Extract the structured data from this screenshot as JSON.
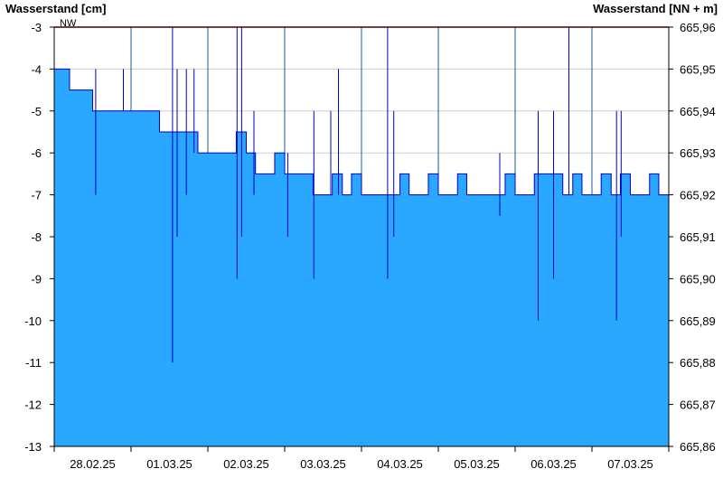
{
  "chart_data": {
    "type": "area",
    "ylabel_left": "Wasserstand [cm]",
    "ylabel_right": "Wasserstand [NN + m]",
    "ylim": [
      -13,
      -3
    ],
    "y_ticks": [
      -3,
      -4,
      -5,
      -6,
      -7,
      -8,
      -9,
      -10,
      -11,
      -12,
      -13
    ],
    "y2lim": [
      665.86,
      665.96
    ],
    "y2_ticks": [
      "665,96",
      "665,95",
      "665,94",
      "665,93",
      "665,92",
      "665,91",
      "665,90",
      "665,89",
      "665,88",
      "665,87",
      "665,86"
    ],
    "x_ticks": [
      "28.02.25",
      "01.03.25",
      "02.03.25",
      "03.03.25",
      "04.03.25",
      "05.03.25",
      "06.03.25",
      "07.03.25"
    ],
    "reference_line": {
      "label": "NW",
      "value": -3,
      "color": "#cc0000"
    },
    "fill_color": "#2aa7ff",
    "line_color": "#0000cc",
    "grid": true,
    "series": [
      {
        "x_days": [
          0,
          0.1,
          0.2,
          0.3,
          0.42,
          0.5,
          0.62,
          0.75,
          0.87,
          1.0,
          1.12,
          1.25,
          1.37,
          1.5,
          1.62,
          1.75,
          1.87,
          2.0,
          2.12,
          2.25,
          2.37,
          2.5,
          2.62,
          2.75,
          2.87,
          3.0,
          3.12,
          3.25,
          3.37,
          3.5,
          3.62,
          3.75,
          3.87,
          4.0,
          4.12,
          4.25,
          4.37,
          4.5,
          4.62,
          4.75,
          4.87,
          5.0,
          5.12,
          5.25,
          5.37,
          5.5,
          5.62,
          5.75,
          5.87,
          6.0,
          6.12,
          6.25,
          6.37,
          6.5,
          6.62,
          6.75,
          6.87,
          7.0,
          7.12,
          7.25,
          7.37,
          7.5,
          7.62,
          7.75,
          7.87,
          8.0
        ],
        "values": [
          -4,
          -4,
          -4.5,
          -4.5,
          -4.5,
          -5,
          -5,
          -5,
          -5,
          -5,
          -5,
          -5,
          -5.5,
          -5.5,
          -5.5,
          -5.5,
          -6,
          -6,
          -6,
          -6,
          -5.5,
          -6,
          -6.5,
          -6.5,
          -6,
          -6.5,
          -6.5,
          -6.5,
          -7,
          -7,
          -6.5,
          -7,
          -6.5,
          -7,
          -7,
          -7,
          -7,
          -6.5,
          -7,
          -7,
          -6.5,
          -7,
          -7,
          -6.5,
          -7,
          -7,
          -7,
          -7,
          -6.5,
          -7,
          -7,
          -6.5,
          -6.5,
          -6.5,
          -7,
          -6.5,
          -7,
          -7,
          -6.5,
          -7,
          -6.5,
          -7,
          -7,
          -6.5,
          -7,
          -7
        ]
      }
    ],
    "spikes": [
      {
        "x": 1.54,
        "low": -11,
        "high": -3
      },
      {
        "x": 1.6,
        "low": -8,
        "high": -4
      },
      {
        "x": 2.38,
        "low": -9,
        "high": -3
      },
      {
        "x": 2.44,
        "low": -8,
        "high": -3
      },
      {
        "x": 3.04,
        "low": -8,
        "high": -6
      },
      {
        "x": 3.38,
        "low": -9,
        "high": -5
      },
      {
        "x": 4.34,
        "low": -9,
        "high": -3
      },
      {
        "x": 4.42,
        "low": -8,
        "high": -5
      },
      {
        "x": 5.8,
        "low": -7.5,
        "high": -6
      },
      {
        "x": 6.3,
        "low": -10,
        "high": -5
      },
      {
        "x": 6.5,
        "low": -9,
        "high": -5
      },
      {
        "x": 6.7,
        "low": -7,
        "high": -3
      },
      {
        "x": 7.32,
        "low": -10,
        "high": -5
      },
      {
        "x": 7.38,
        "low": -8,
        "high": -5
      },
      {
        "x": 0.54,
        "low": -7,
        "high": -4
      },
      {
        "x": 0.9,
        "low": -5,
        "high": -4
      },
      {
        "x": 1.72,
        "low": -7,
        "high": -4
      },
      {
        "x": 1.82,
        "low": -6,
        "high": -4
      },
      {
        "x": 2.6,
        "low": -7,
        "high": -5
      },
      {
        "x": 3.6,
        "low": -7,
        "high": -5
      },
      {
        "x": 3.7,
        "low": -7,
        "high": -4
      }
    ]
  }
}
